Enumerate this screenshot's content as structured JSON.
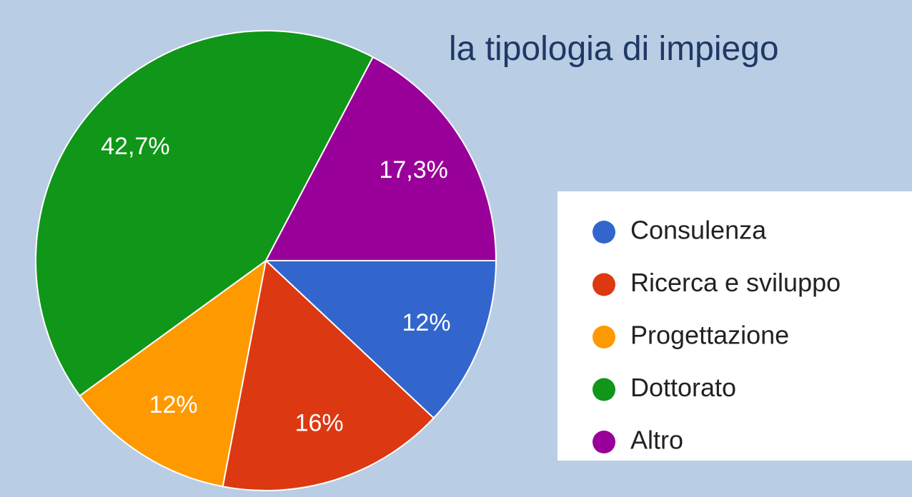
{
  "chart_data": {
    "type": "pie",
    "title": "la tipologia di impiego",
    "categories": [
      "Consulenza",
      "Ricerca e sviluppo",
      "Progettazione",
      "Dottorato",
      "Altro"
    ],
    "values": [
      12,
      16,
      12,
      42.7,
      17.3
    ],
    "value_labels": [
      "12%",
      "16%",
      "12%",
      "42,7%",
      "17,3%"
    ],
    "colors": [
      "#3366cc",
      "#dc3912",
      "#ff9900",
      "#109618",
      "#990099"
    ],
    "legend": "right"
  }
}
